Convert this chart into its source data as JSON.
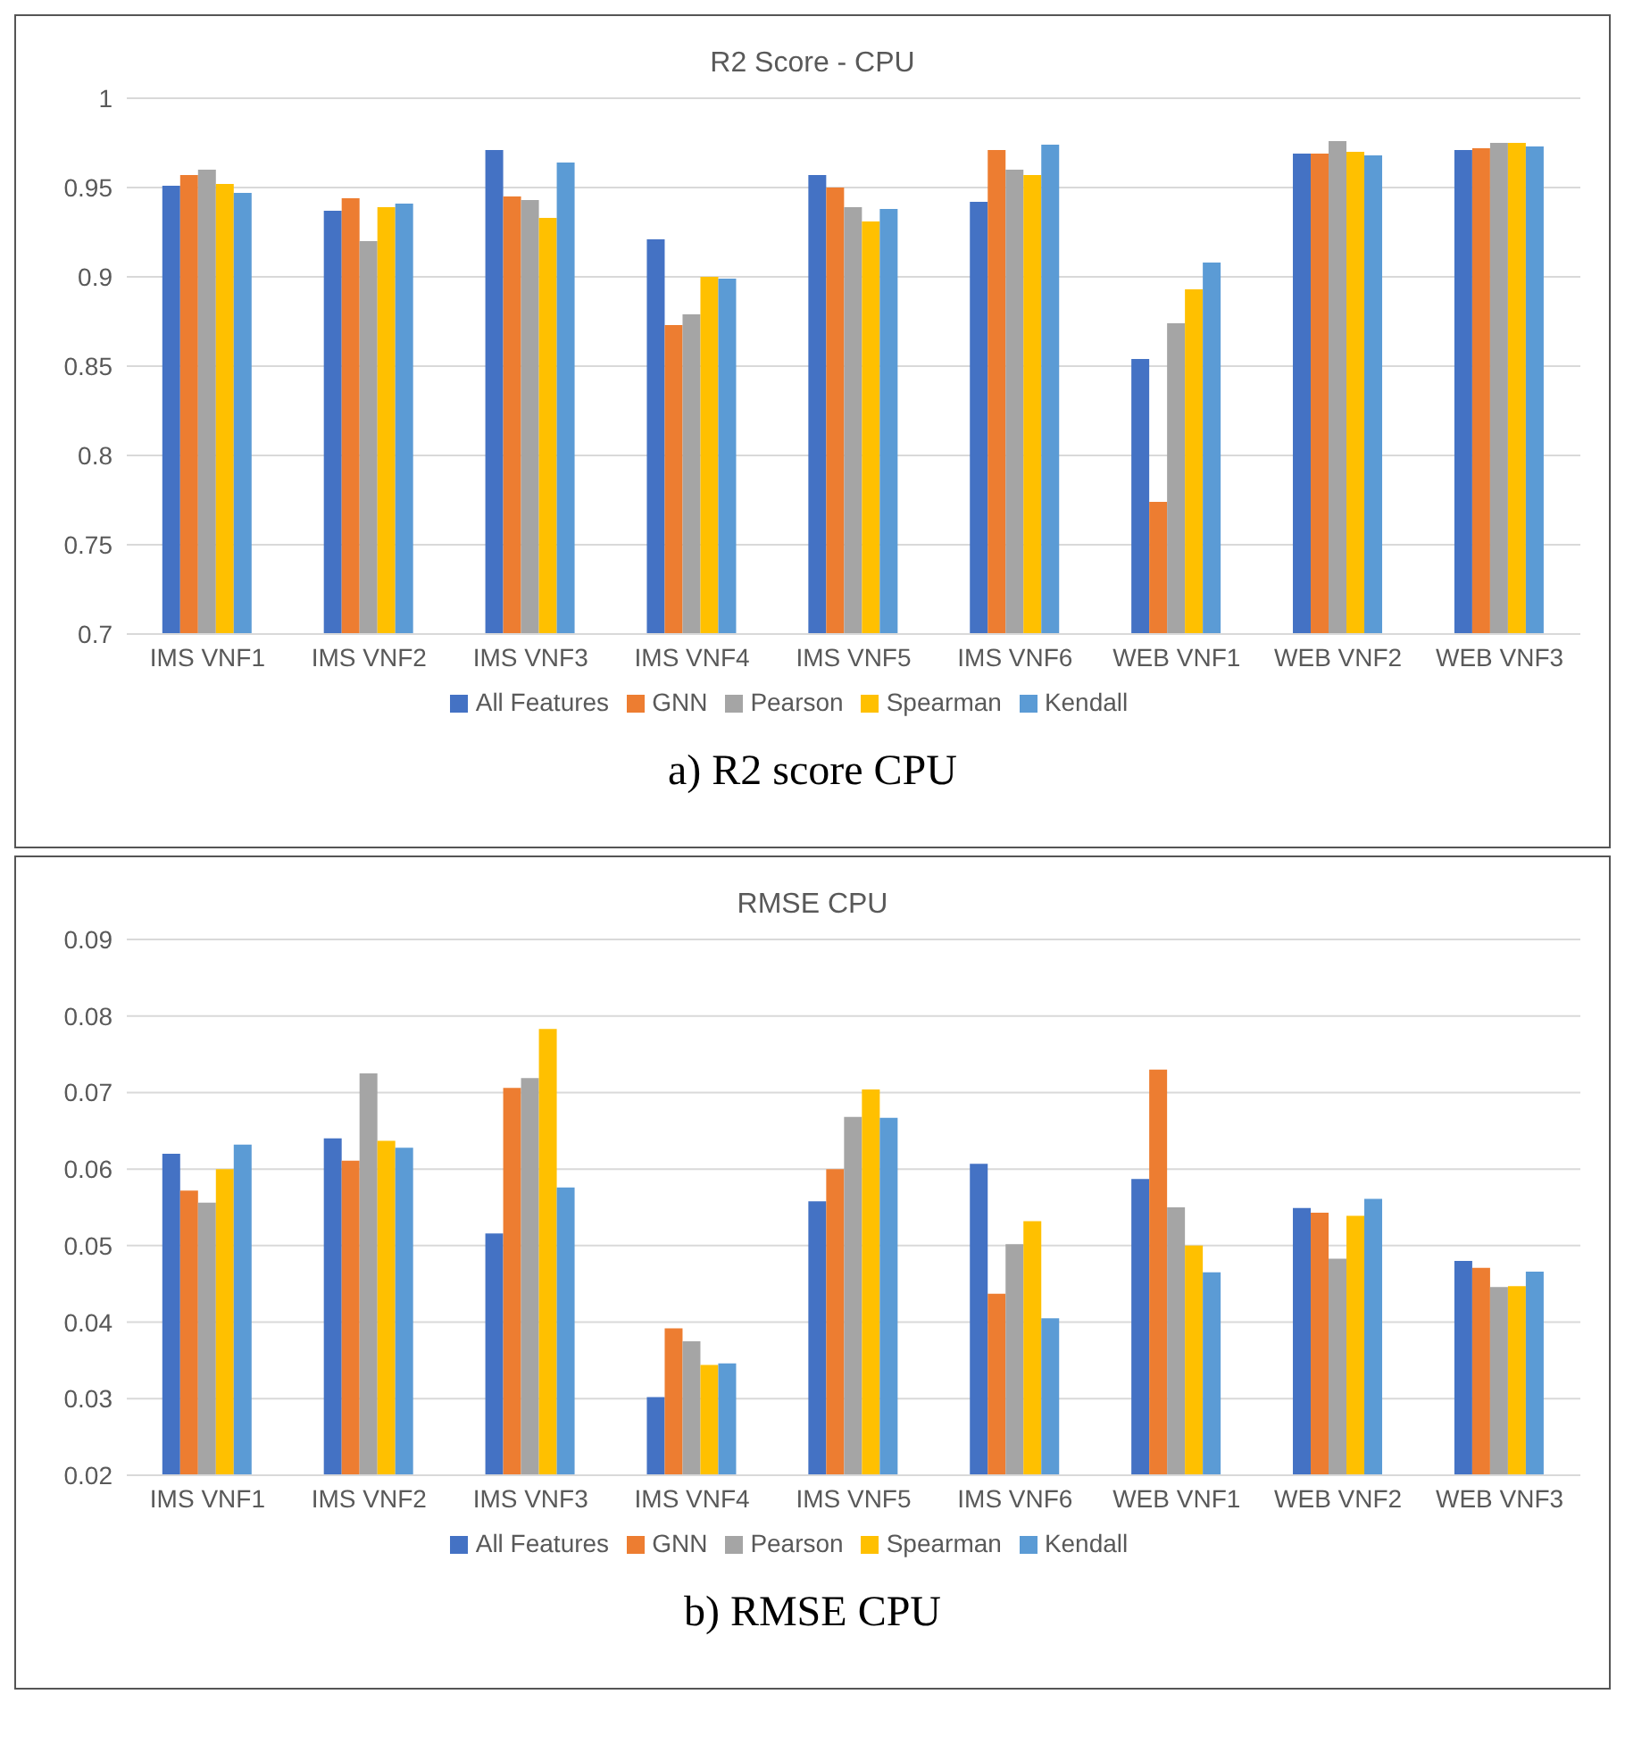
{
  "chart_data": [
    {
      "type": "bar",
      "title": "R2 Score - CPU",
      "categories": [
        "IMS VNF1",
        "IMS VNF2",
        "IMS VNF3",
        "IMS VNF4",
        "IMS VNF5",
        "IMS VNF6",
        "WEB VNF1",
        "WEB VNF2",
        "WEB VNF3"
      ],
      "series": [
        {
          "name": "All Features",
          "color": "#4472c4",
          "values": [
            0.951,
            0.937,
            0.971,
            0.921,
            0.957,
            0.942,
            0.854,
            0.969,
            0.971
          ]
        },
        {
          "name": "GNN",
          "color": "#ed7d31",
          "values": [
            0.957,
            0.944,
            0.945,
            0.873,
            0.95,
            0.971,
            0.774,
            0.969,
            0.972
          ]
        },
        {
          "name": "Pearson",
          "color": "#a5a5a5",
          "values": [
            0.96,
            0.92,
            0.943,
            0.879,
            0.939,
            0.96,
            0.874,
            0.976,
            0.975
          ]
        },
        {
          "name": "Spearman",
          "color": "#ffc000",
          "values": [
            0.952,
            0.939,
            0.933,
            0.9,
            0.931,
            0.957,
            0.893,
            0.97,
            0.975
          ]
        },
        {
          "name": "Kendall",
          "color": "#5b9bd5",
          "values": [
            0.947,
            0.941,
            0.964,
            0.899,
            0.938,
            0.974,
            0.908,
            0.968,
            0.973
          ]
        }
      ],
      "ylim": [
        0.7,
        1
      ],
      "yticks": [
        0.7,
        0.75,
        0.8,
        0.85,
        0.9,
        0.95,
        1
      ],
      "grid": "y",
      "legend": "bottom",
      "annotations": [
        "a) R2 score CPU"
      ]
    },
    {
      "type": "bar",
      "title": "RMSE CPU",
      "categories": [
        "IMS VNF1",
        "IMS VNF2",
        "IMS VNF3",
        "IMS VNF4",
        "IMS VNF5",
        "IMS VNF6",
        "WEB VNF1",
        "WEB VNF2",
        "WEB VNF3"
      ],
      "series": [
        {
          "name": "All Features",
          "color": "#4472c4",
          "values": [
            0.062,
            0.064,
            0.0516,
            0.0302,
            0.0558,
            0.0607,
            0.0587,
            0.0549,
            0.048
          ]
        },
        {
          "name": "GNN",
          "color": "#ed7d31",
          "values": [
            0.0572,
            0.0611,
            0.0706,
            0.0392,
            0.06,
            0.0437,
            0.073,
            0.0543,
            0.0471
          ]
        },
        {
          "name": "Pearson",
          "color": "#a5a5a5",
          "values": [
            0.0556,
            0.0725,
            0.0719,
            0.0375,
            0.0668,
            0.0502,
            0.055,
            0.0483,
            0.0446
          ]
        },
        {
          "name": "Spearman",
          "color": "#ffc000",
          "values": [
            0.06,
            0.0637,
            0.0783,
            0.0344,
            0.0704,
            0.0532,
            0.05,
            0.0539,
            0.0447
          ]
        },
        {
          "name": "Kendall",
          "color": "#5b9bd5",
          "values": [
            0.0632,
            0.0628,
            0.0576,
            0.0346,
            0.0667,
            0.0405,
            0.0465,
            0.0561,
            0.0466
          ]
        }
      ],
      "ylim": [
        0.02,
        0.09
      ],
      "yticks": [
        0.02,
        0.03,
        0.04,
        0.05,
        0.06,
        0.07,
        0.08,
        0.09
      ],
      "grid": "y",
      "legend": "bottom",
      "annotations": [
        "b) RMSE CPU"
      ]
    }
  ]
}
